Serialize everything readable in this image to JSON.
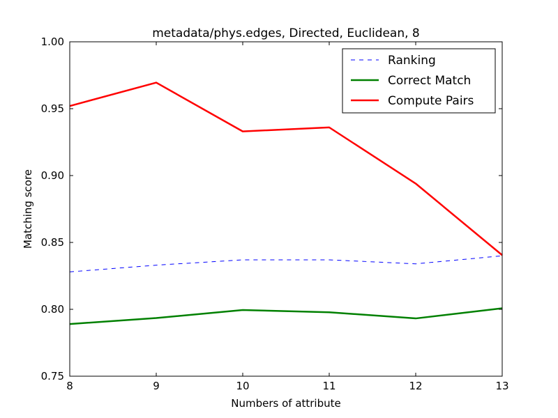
{
  "chart_data": {
    "type": "line",
    "title": "metadata/phys.edges, Directed, Euclidean, 8",
    "xlabel": "Numbers of attribute",
    "ylabel": "Matching score",
    "x": [
      8,
      9,
      10,
      11,
      12,
      13
    ],
    "xlim": [
      8,
      13
    ],
    "ylim": [
      0.75,
      1.0
    ],
    "xticks": [
      "8",
      "9",
      "10",
      "11",
      "12",
      "13"
    ],
    "yticks": [
      "0.75",
      "0.80",
      "0.85",
      "0.90",
      "0.95",
      "1.00"
    ],
    "ytick_values": [
      0.75,
      0.8,
      0.85,
      0.9,
      0.95,
      1.0
    ],
    "grid": false,
    "legend_position": "top-right",
    "series": [
      {
        "name": "Ranking",
        "values": [
          0.828,
          0.833,
          0.837,
          0.837,
          0.834,
          0.84
        ],
        "color": "#0000ff",
        "style": "dashed"
      },
      {
        "name": "Correct Match",
        "values": [
          0.789,
          0.7935,
          0.7995,
          0.7978,
          0.7932,
          0.8008
        ],
        "color": "#008000",
        "style": "solid"
      },
      {
        "name": "Compute Pairs",
        "values": [
          0.952,
          0.9695,
          0.933,
          0.936,
          0.894,
          0.8405
        ],
        "color": "#ff0000",
        "style": "solid"
      }
    ]
  }
}
